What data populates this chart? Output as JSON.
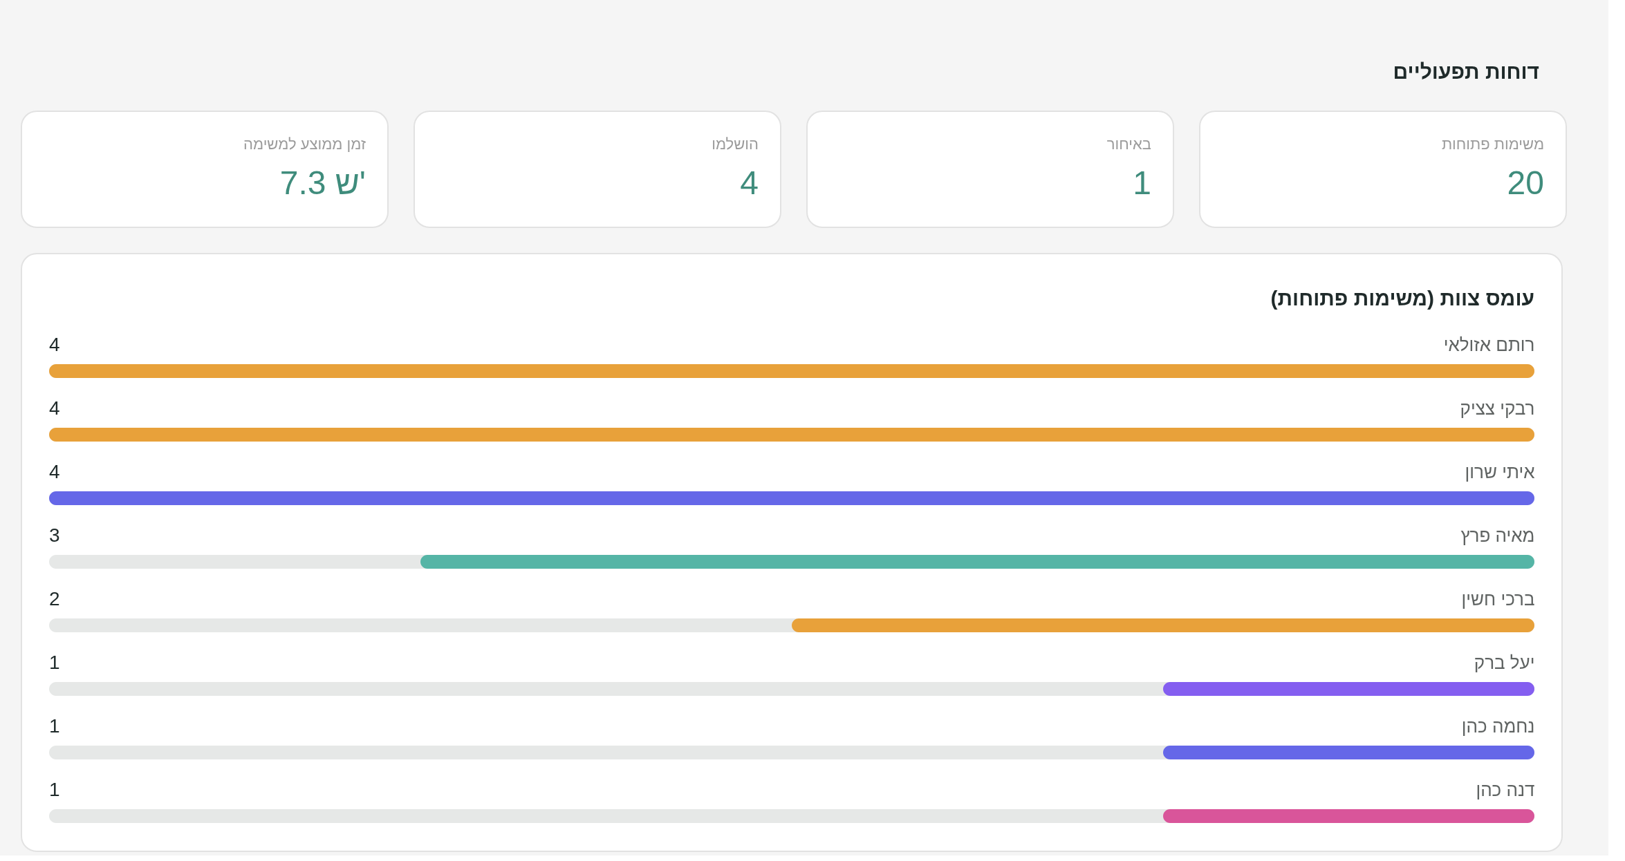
{
  "chart_data": [
    {
      "type": "other",
      "title": "דוחות תפעוליים",
      "categories": [
        "זמן ממוצע למשימה",
        "הושלמו",
        "באיחור",
        "משימות פתוחות"
      ],
      "value_labels": [
        "7.3 ש'",
        "4",
        "1",
        "20"
      ]
    },
    {
      "type": "bar",
      "orientation": "horizontal",
      "title": "עומס צוות (משימות פתוחות)",
      "categories": [
        "רותם אזולאי",
        "רבקי צציק",
        "איתי שרון",
        "מאיה פרץ",
        "ברכי חשין",
        "יעל ברק",
        "נחמה כהן",
        "דנה כהן"
      ],
      "values": [
        4,
        4,
        4,
        3,
        2,
        1,
        1,
        1
      ],
      "colors": [
        "#e8a13a",
        "#e8a13a",
        "#6567e8",
        "#55b5a6",
        "#e8a13a",
        "#845ef0",
        "#6567e8",
        "#d9559a"
      ],
      "xlim": [
        4,
        0
      ],
      "data_labels": true,
      "tick_labels": "y"
    }
  ]
}
